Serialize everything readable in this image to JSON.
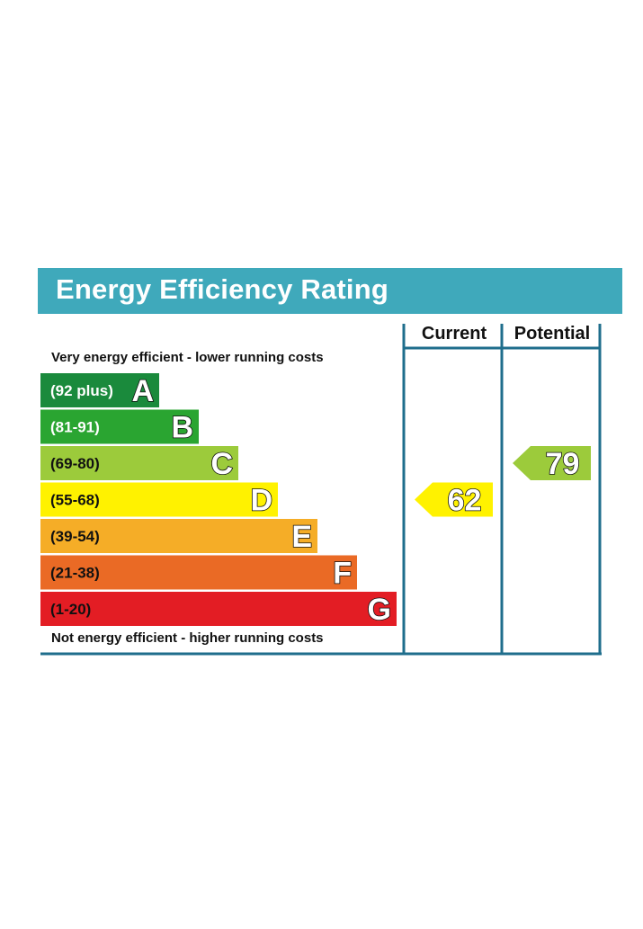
{
  "title": "Energy Efficiency Rating",
  "columns": {
    "current": "Current",
    "potential": "Potential"
  },
  "top_note": "Very energy efficient - lower running costs",
  "bottom_note": "Not energy efficient - higher running costs",
  "colors": {
    "title_bar": "#3fa9bb",
    "frame": "#1f6e8c"
  },
  "chart_data": {
    "type": "bar",
    "title": "Energy Efficiency Rating",
    "categories": [
      "A",
      "B",
      "C",
      "D",
      "E",
      "F",
      "G"
    ],
    "bands": [
      {
        "letter": "A",
        "range": "(92 plus)",
        "color": "#1a8a3c",
        "text_color": "#ffffff"
      },
      {
        "letter": "B",
        "range": "(81-91)",
        "color": "#2aa531",
        "text_color": "#ffffff"
      },
      {
        "letter": "C",
        "range": "(69-80)",
        "color": "#9ccb3b",
        "text_color": "#111111"
      },
      {
        "letter": "D",
        "range": "(55-68)",
        "color": "#fff200",
        "text_color": "#111111"
      },
      {
        "letter": "E",
        "range": "(39-54)",
        "color": "#f5ad27",
        "text_color": "#111111"
      },
      {
        "letter": "F",
        "range": "(21-38)",
        "color": "#ea6a25",
        "text_color": "#111111"
      },
      {
        "letter": "G",
        "range": "(1-20)",
        "color": "#e31d24",
        "text_color": "#111111"
      }
    ],
    "current": {
      "value": 62,
      "band": "D",
      "color": "#fff200"
    },
    "potential": {
      "value": 79,
      "band": "C",
      "color": "#9ccb3b"
    }
  }
}
